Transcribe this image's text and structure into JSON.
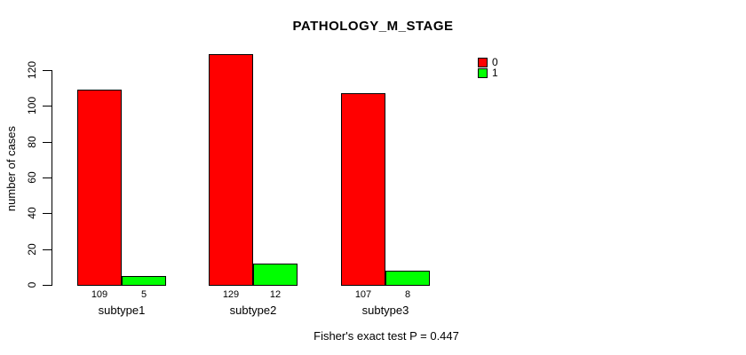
{
  "chart_data": {
    "type": "bar",
    "title": "PATHOLOGY_M_STAGE",
    "categories": [
      "subtype1",
      "subtype2",
      "subtype3"
    ],
    "series": [
      {
        "name": "0",
        "color": "#ff0000",
        "values": [
          109,
          129,
          107
        ]
      },
      {
        "name": "1",
        "color": "#00ff00",
        "values": [
          5,
          12,
          8
        ]
      }
    ],
    "xlabel": "",
    "ylabel": "number of cases",
    "yticks": [
      0,
      20,
      40,
      60,
      80,
      100,
      120
    ],
    "ylim": [
      0,
      130
    ],
    "grid": false,
    "legend_position": "top-right",
    "show_value_labels": true,
    "annotation": "Fisher's exact test P = 0.447"
  },
  "colors": {
    "series0": "#ff0000",
    "series1": "#00ff00",
    "axis": "#000000",
    "background": "#ffffff"
  }
}
